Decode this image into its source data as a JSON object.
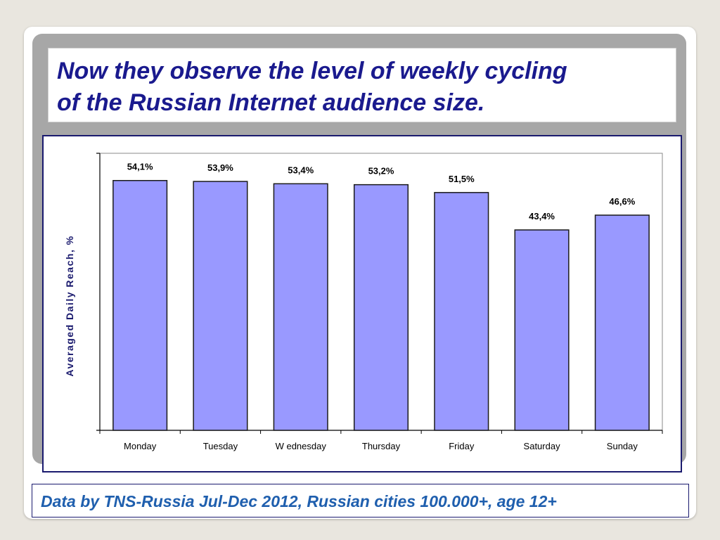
{
  "slide": {
    "title_line1": "Now they observe the level of weekly cycling",
    "title_line2": "of the Russian Internet audience size.",
    "footer": "Data by TNS-Russia Jul-Dec 2012, Russian cities 100.000+, age 12+"
  },
  "colors": {
    "title": "#1a1a8e",
    "footer": "#1f5fae",
    "bar_fill": "#9999ff",
    "bar_stroke": "#1a1a1a",
    "ylabel": "#1a1a6e"
  },
  "chart_data": {
    "type": "bar",
    "title": "",
    "xlabel": "",
    "ylabel": "Averaged Daily Reach, %",
    "categories": [
      "Monday",
      "Tuesday",
      "W ednesday",
      "Thursday",
      "Friday",
      "Saturday",
      "Sunday"
    ],
    "values": [
      54.1,
      53.9,
      53.4,
      53.2,
      51.5,
      43.4,
      46.6
    ],
    "data_labels": [
      "54,1%",
      "53,9%",
      "53,4%",
      "53,2%",
      "51,5%",
      "43,4%",
      "46,6%"
    ],
    "ylim": [
      0,
      60
    ],
    "grid": false,
    "legend": false
  }
}
